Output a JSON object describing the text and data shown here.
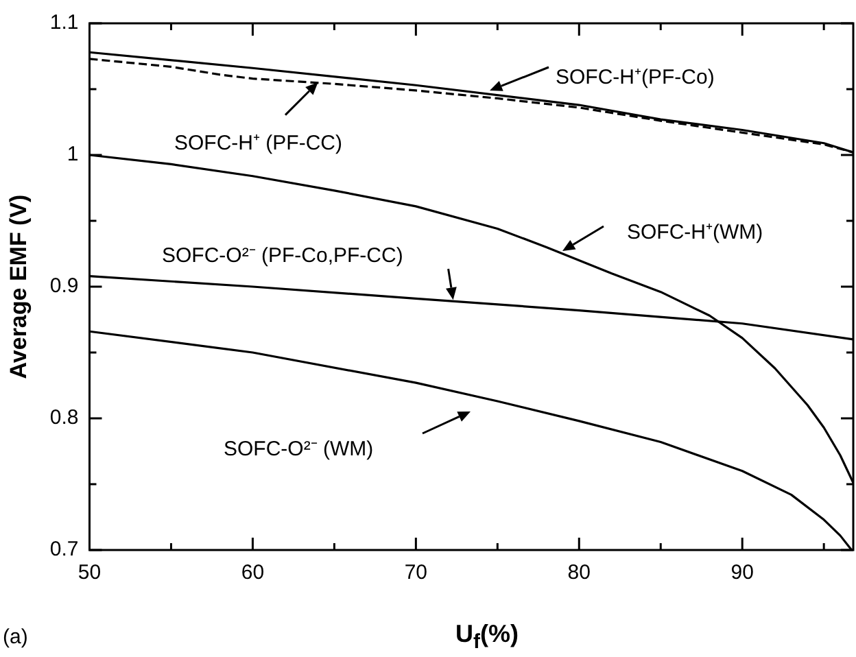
{
  "chart_data": {
    "type": "line",
    "xlabel": "U$_{f}$(%)",
    "ylabel": "Average EMF (V)",
    "annotations": [
      "SOFC-H⁺(PF-Co)",
      {
        "text": "SOFC-H⁺ (PF-CC)",
        "x": 64,
        "y": 1.055
      },
      "SOFC-H⁺(WM)",
      {
        "text": "SOFC-O²⁻ (PF-Co,PF-CC)",
        "x": 72.3,
        "y": 0.89
      },
      "SOFC-O²⁻ (WM)",
      "(a)"
    ],
    "xlim": [
      50,
      96.8
    ],
    "xticks": [
      50,
      {
        "value": 55,
        "label": null
      },
      60,
      {
        "value": 65,
        "label": null
      },
      70,
      {
        "value": 75,
        "label": null
      },
      80,
      {
        "value": 85,
        "label": null
      },
      90,
      {
        "value": 95,
        "label": null
      }
    ],
    "ylim": [
      0.7,
      1.1
    ],
    "yticks": [
      0.7,
      {
        "value": 0.75,
        "label": null
      },
      0.8,
      {
        "value": 0.85,
        "label": null
      },
      0.9,
      {
        "value": 0.95,
        "label": null
      },
      {
        "value": 1,
        "label": "1"
      },
      {
        "value": 1.05,
        "label": null
      },
      1.1
    ],
    "grid": false,
    "legend": false,
    "marker": "none",
    "series": [
      {
        "color": "#000000",
        "line_style": "solid",
        "x": [
          50,
          60,
          70,
          80,
          85,
          90,
          95,
          96.8
        ],
        "values": [
          1.078,
          1.066,
          1.053,
          1.038,
          1.027,
          1.019,
          1.009,
          1.002
        ]
      },
      {
        "color": "#000000",
        "line_style": "dashed",
        "x": [
          50,
          55,
          58,
          60,
          65,
          70,
          75,
          80,
          85,
          90,
          95,
          96.8
        ],
        "values": [
          1.073,
          1.067,
          1.061,
          1.058,
          1.054,
          1.049,
          1.043,
          1.036,
          1.026,
          1.017,
          1.008,
          1.002
        ]
      },
      {
        "color": "#000000",
        "line_style": "solid",
        "x": [
          50,
          55,
          60,
          65,
          70,
          75,
          78,
          82,
          85,
          88,
          90,
          92,
          94,
          95,
          96,
          96.8
        ],
        "values": [
          1.0,
          0.993,
          0.984,
          0.973,
          0.961,
          0.944,
          0.93,
          0.91,
          0.896,
          0.878,
          0.861,
          0.838,
          0.81,
          0.793,
          0.772,
          0.751
        ]
      },
      {
        "color": "#000000",
        "line_style": "solid",
        "x": [
          50,
          60,
          70,
          80,
          90,
          96.8
        ],
        "values": [
          0.908,
          0.9,
          0.891,
          0.882,
          0.872,
          0.86
        ]
      },
      {
        "color": "#000000",
        "line_style": "solid",
        "x": [
          50,
          60,
          70,
          75,
          80,
          85,
          90,
          93,
          95,
          96,
          96.7
        ],
        "values": [
          0.866,
          0.85,
          0.827,
          0.813,
          0.798,
          0.782,
          0.76,
          0.742,
          0.723,
          0.711,
          0.7
        ]
      }
    ]
  }
}
